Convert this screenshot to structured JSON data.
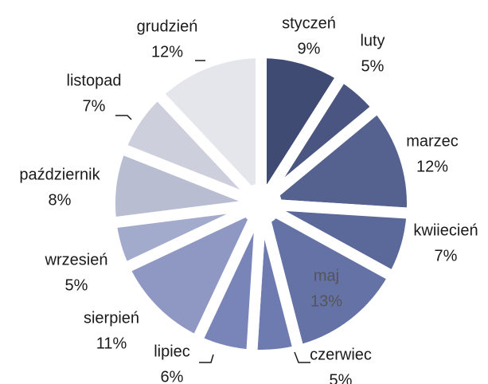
{
  "chart_data": {
    "type": "pie",
    "categories": [
      "styczeń",
      "luty",
      "marzec",
      "kwiiecień",
      "maj",
      "czerwiec",
      "lipiec",
      "sierpień",
      "wrzesień",
      "październik",
      "listopad",
      "grudzień"
    ],
    "values": [
      9,
      5,
      12,
      7,
      13,
      5,
      6,
      11,
      5,
      8,
      7,
      12
    ],
    "value_labels": [
      "9%",
      "5%",
      "12%",
      "7%",
      "13%",
      "5%",
      "6%",
      "11%",
      "5%",
      "8%",
      "7%",
      "12%"
    ],
    "colors": [
      "#3f4b72",
      "#4a5681",
      "#55628f",
      "#5b689a",
      "#6572a6",
      "#6e7bb0",
      "#7985b8",
      "#8e98c2",
      "#a3abcc",
      "#b8bdd2",
      "#cdd0dc",
      "#e4e6ec"
    ]
  }
}
